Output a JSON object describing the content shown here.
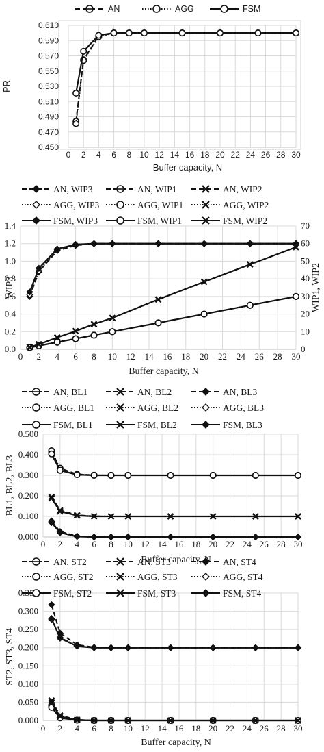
{
  "chart_data": [
    {
      "type": "line",
      "xlabel": "Buffer capacity, N",
      "ylabel": "PR",
      "xlim": [
        0,
        30
      ],
      "ylim": [
        0.45,
        0.61
      ],
      "xticks": [
        "0",
        "2",
        "4",
        "6",
        "8",
        "10",
        "12",
        "14",
        "16",
        "18",
        "20",
        "22",
        "24",
        "26",
        "28",
        "30"
      ],
      "yticks": [
        "0.450",
        "0.470",
        "0.490",
        "0.510",
        "0.530",
        "0.550",
        "0.570",
        "0.590",
        "0.610"
      ],
      "grid": true,
      "legend_position": "top",
      "x": [
        1,
        2,
        4,
        6,
        8,
        10,
        15,
        20,
        25,
        30
      ],
      "series": [
        {
          "name": "AN",
          "style": "dashed",
          "marker": "circle-bar",
          "values": [
            0.484,
            0.565,
            0.596,
            0.6,
            0.6,
            0.6,
            0.6,
            0.6,
            0.6,
            0.6
          ]
        },
        {
          "name": "AGG",
          "style": "dotted",
          "marker": "circle",
          "values": [
            0.481,
            0.564,
            0.595,
            0.6,
            0.6,
            0.6,
            0.6,
            0.6,
            0.6,
            0.6
          ]
        },
        {
          "name": "FSM",
          "style": "solid",
          "marker": "circle",
          "values": [
            0.521,
            0.576,
            0.597,
            0.6,
            0.6,
            0.6,
            0.6,
            0.6,
            0.6,
            0.6
          ]
        }
      ]
    },
    {
      "type": "line",
      "xlabel": "Buffer capacity, N",
      "ylabel": "WIP3",
      "ylabel_right": "WIP1, WIP2",
      "xlim": [
        0,
        30
      ],
      "ylim": [
        0,
        1.4
      ],
      "ylim_right": [
        0,
        70
      ],
      "xticks": [
        "0",
        "2",
        "4",
        "6",
        "8",
        "10",
        "12",
        "14",
        "16",
        "18",
        "20",
        "22",
        "24",
        "26",
        "28",
        "30"
      ],
      "yticks": [
        "0.0",
        "0.2",
        "0.4",
        "0.6",
        "0.8",
        "1.0",
        "1.2",
        "1.4"
      ],
      "yticks_right": [
        "0",
        "10",
        "20",
        "30",
        "40",
        "50",
        "60",
        "70"
      ],
      "grid": true,
      "legend_position": "top",
      "x": [
        1,
        2,
        4,
        6,
        8,
        10,
        15,
        20,
        25,
        30
      ],
      "series": [
        {
          "name": "AN, WIP3",
          "axis": "left",
          "style": "dashed",
          "marker": "diamond",
          "values": [
            0.6,
            0.88,
            1.12,
            1.18,
            1.2,
            1.2,
            1.2,
            1.2,
            1.2,
            1.2
          ]
        },
        {
          "name": "AGG, WIP3",
          "axis": "left",
          "style": "dotted",
          "marker": "diamond-open",
          "values": [
            0.62,
            0.89,
            1.13,
            1.19,
            1.2,
            1.2,
            1.2,
            1.2,
            1.2,
            1.2
          ]
        },
        {
          "name": "FSM, WIP3",
          "axis": "left",
          "style": "solid",
          "marker": "diamond",
          "values": [
            0.65,
            0.92,
            1.14,
            1.19,
            1.2,
            1.2,
            1.2,
            1.2,
            1.2,
            1.2
          ]
        },
        {
          "name": "AN, WIP1",
          "axis": "right",
          "style": "dashed",
          "marker": "circle-bar",
          "values": [
            1.0,
            2.0,
            4.0,
            6.0,
            8.0,
            10.0,
            15.0,
            20.0,
            25.0,
            30.0
          ]
        },
        {
          "name": "AGG, WIP1",
          "axis": "right",
          "style": "dotted",
          "marker": "circle",
          "values": [
            1.0,
            2.0,
            4.0,
            6.0,
            8.0,
            10.0,
            15.0,
            20.0,
            25.0,
            30.0
          ]
        },
        {
          "name": "FSM, WIP1",
          "axis": "right",
          "style": "solid",
          "marker": "circle",
          "values": [
            1.0,
            2.0,
            4.0,
            6.0,
            8.0,
            10.0,
            15.0,
            20.0,
            25.0,
            30.0
          ]
        },
        {
          "name": "AN, WIP2",
          "axis": "right",
          "style": "dashed",
          "marker": "x",
          "values": [
            1.2,
            2.8,
            6.7,
            10.3,
            14.3,
            17.8,
            28.3,
            38.3,
            48.2,
            58.0
          ]
        },
        {
          "name": "AGG, WIP2",
          "axis": "right",
          "style": "dotted",
          "marker": "x",
          "values": [
            1.2,
            2.8,
            6.7,
            10.3,
            14.3,
            17.8,
            28.3,
            38.3,
            48.2,
            58.0
          ]
        },
        {
          "name": "FSM, WIP2",
          "axis": "right",
          "style": "solid",
          "marker": "x",
          "values": [
            1.2,
            2.8,
            6.7,
            10.3,
            14.3,
            17.8,
            28.3,
            38.3,
            48.2,
            58.0
          ]
        }
      ]
    },
    {
      "type": "line",
      "xlabel": "Buffer capacity, N",
      "ylabel": "BL1, BL2, BL3",
      "xlim": [
        0,
        30
      ],
      "ylim": [
        0,
        0.5
      ],
      "xticks": [
        "0",
        "2",
        "4",
        "6",
        "8",
        "10",
        "12",
        "14",
        "16",
        "18",
        "20",
        "22",
        "24",
        "26",
        "28",
        "30"
      ],
      "yticks": [
        "0.000",
        "0.100",
        "0.200",
        "0.300",
        "0.400",
        "0.500"
      ],
      "grid": true,
      "legend_position": "top",
      "x": [
        1,
        2,
        4,
        6,
        8,
        10,
        15,
        20,
        25,
        30
      ],
      "series": [
        {
          "name": "AN, BL1",
          "style": "dashed",
          "marker": "circle-bar",
          "values": [
            0.415,
            0.335,
            0.305,
            0.301,
            0.3,
            0.3,
            0.3,
            0.3,
            0.3,
            0.3
          ]
        },
        {
          "name": "AGG, BL1",
          "style": "dotted",
          "marker": "circle",
          "values": [
            0.42,
            0.332,
            0.304,
            0.301,
            0.3,
            0.3,
            0.3,
            0.3,
            0.3,
            0.3
          ]
        },
        {
          "name": "FSM, BL1",
          "style": "solid",
          "marker": "circle",
          "values": [
            0.404,
            0.324,
            0.303,
            0.3,
            0.3,
            0.3,
            0.3,
            0.3,
            0.3,
            0.3
          ]
        },
        {
          "name": "AN, BL2",
          "style": "dashed",
          "marker": "x",
          "values": [
            0.195,
            0.13,
            0.106,
            0.101,
            0.1,
            0.1,
            0.1,
            0.1,
            0.1,
            0.1
          ]
        },
        {
          "name": "AGG, BL2",
          "style": "dotted",
          "marker": "x",
          "values": [
            0.192,
            0.128,
            0.105,
            0.101,
            0.1,
            0.1,
            0.1,
            0.1,
            0.1,
            0.1
          ]
        },
        {
          "name": "FSM, BL2",
          "style": "solid",
          "marker": "x",
          "values": [
            0.188,
            0.124,
            0.104,
            0.1,
            0.1,
            0.1,
            0.1,
            0.1,
            0.1,
            0.1
          ]
        },
        {
          "name": "AN, BL3",
          "style": "dashed",
          "marker": "diamond",
          "values": [
            0.078,
            0.026,
            0.004,
            0.0,
            0.0,
            0.0,
            0.0,
            0.0,
            0.0,
            0.0
          ]
        },
        {
          "name": "AGG, BL3",
          "style": "dotted",
          "marker": "diamond-open",
          "values": [
            0.074,
            0.024,
            0.003,
            0.0,
            0.0,
            0.0,
            0.0,
            0.0,
            0.0,
            0.0
          ]
        },
        {
          "name": "FSM, BL3",
          "style": "solid",
          "marker": "diamond",
          "values": [
            0.07,
            0.021,
            0.002,
            0.0,
            0.0,
            0.0,
            0.0,
            0.0,
            0.0,
            0.0
          ]
        }
      ]
    },
    {
      "type": "line",
      "xlabel": "Buffer capacity, N",
      "ylabel": "ST2, ST3, ST4",
      "xlim": [
        0,
        30
      ],
      "ylim": [
        0,
        0.35
      ],
      "xticks": [
        "0",
        "2",
        "4",
        "6",
        "8",
        "10",
        "12",
        "14",
        "16",
        "18",
        "20",
        "22",
        "24",
        "26",
        "28",
        "30"
      ],
      "yticks": [
        "0.000",
        "0.050",
        "0.100",
        "0.150",
        "0.200",
        "0.250",
        "0.300",
        "0.350"
      ],
      "grid": true,
      "legend_position": "top",
      "x": [
        1,
        2,
        4,
        6,
        8,
        10,
        15,
        20,
        25,
        30
      ],
      "series": [
        {
          "name": "AN, ST2",
          "style": "dashed",
          "marker": "circle-bar",
          "values": [
            0.04,
            0.008,
            0.001,
            0.0,
            0.0,
            0.0,
            0.0,
            0.0,
            0.0,
            0.0
          ]
        },
        {
          "name": "AGG, ST2",
          "style": "dotted",
          "marker": "circle",
          "values": [
            0.042,
            0.009,
            0.001,
            0.0,
            0.0,
            0.0,
            0.0,
            0.0,
            0.0,
            0.0
          ]
        },
        {
          "name": "FSM, ST2",
          "style": "solid",
          "marker": "circle",
          "values": [
            0.036,
            0.007,
            0.001,
            0.0,
            0.0,
            0.0,
            0.0,
            0.0,
            0.0,
            0.0
          ]
        },
        {
          "name": "AN, ST3",
          "style": "dashed",
          "marker": "x",
          "values": [
            0.055,
            0.014,
            0.002,
            0.0,
            0.0,
            0.0,
            0.0,
            0.0,
            0.0,
            0.0
          ]
        },
        {
          "name": "AGG, ST3",
          "style": "dotted",
          "marker": "x",
          "values": [
            0.05,
            0.012,
            0.002,
            0.0,
            0.0,
            0.0,
            0.0,
            0.0,
            0.0,
            0.0
          ]
        },
        {
          "name": "FSM, ST3",
          "style": "solid",
          "marker": "x",
          "values": [
            0.048,
            0.011,
            0.001,
            0.0,
            0.0,
            0.0,
            0.0,
            0.0,
            0.0,
            0.0
          ]
        },
        {
          "name": "AN, ST4",
          "style": "dashed",
          "marker": "diamond",
          "values": [
            0.318,
            0.24,
            0.208,
            0.201,
            0.2,
            0.2,
            0.2,
            0.2,
            0.2,
            0.2
          ]
        },
        {
          "name": "AGG, ST4",
          "style": "dotted",
          "marker": "diamond-open",
          "values": [
            0.278,
            0.228,
            0.205,
            0.2,
            0.2,
            0.2,
            0.2,
            0.2,
            0.2,
            0.2
          ]
        },
        {
          "name": "FSM, ST4",
          "style": "solid",
          "marker": "diamond",
          "values": [
            0.28,
            0.226,
            0.204,
            0.2,
            0.2,
            0.2,
            0.2,
            0.2,
            0.2,
            0.2
          ]
        }
      ]
    }
  ]
}
